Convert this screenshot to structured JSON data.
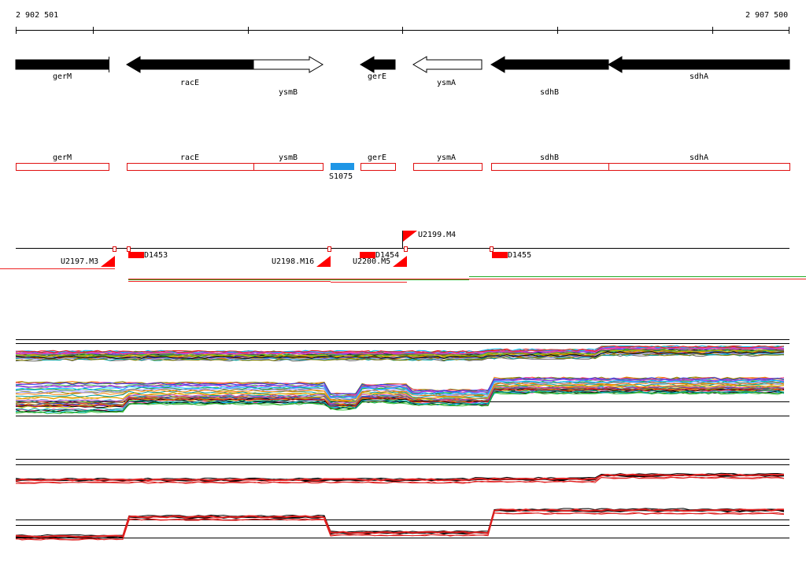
{
  "ruler": {
    "start_label": "2 902 501",
    "end_label": "2 907 500"
  },
  "genes": [
    {
      "name": "gerM",
      "strand": "+",
      "filled": true,
      "label_row": 0
    },
    {
      "name": "racE",
      "strand": "-",
      "filled": true,
      "label_row": 1
    },
    {
      "name": "ysmB",
      "strand": "+",
      "filled": false,
      "label_row": 2
    },
    {
      "name": "gerE",
      "strand": "-",
      "filled": true,
      "label_row": 0
    },
    {
      "name": "ysmA",
      "strand": "-",
      "filled": false,
      "label_row": 0
    },
    {
      "name": "sdhB",
      "strand": "-",
      "filled": true,
      "label_row": 2
    },
    {
      "name": "sdhA",
      "strand": "-",
      "filled": true,
      "label_row": 0
    }
  ],
  "annotation_boxes": [
    {
      "name": "gerM"
    },
    {
      "name": "racE"
    },
    {
      "name": "ysmB"
    },
    {
      "name": "gerE"
    },
    {
      "name": "ysmA"
    },
    {
      "name": "sdhB"
    },
    {
      "name": "sdhA"
    }
  ],
  "feature_s": {
    "name": "S1075",
    "color": "#1e96e6"
  },
  "regulatory": [
    {
      "name": "D1453"
    },
    {
      "name": "D1454"
    },
    {
      "name": "D1455"
    },
    {
      "name": "U2197.M3"
    },
    {
      "name": "U2198.M16"
    },
    {
      "name": "U2199.M4"
    },
    {
      "name": "U2200.M5"
    }
  ],
  "colors": {
    "gene_fill": "#000000",
    "annotation_box": "#e01010",
    "marker": "#ff0000",
    "track_green": "#22aa22",
    "track_red": "#ee2222"
  }
}
